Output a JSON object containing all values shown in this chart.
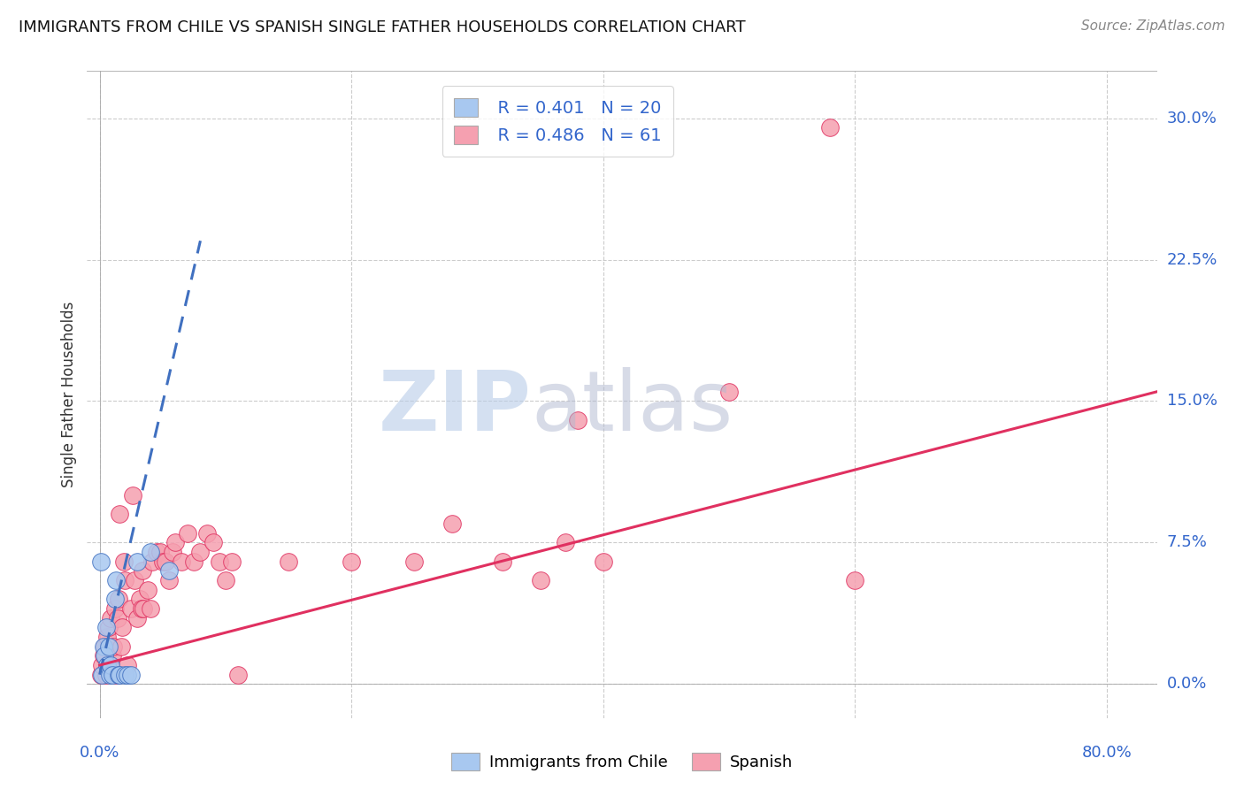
{
  "title": "IMMIGRANTS FROM CHILE VS SPANISH SINGLE FATHER HOUSEHOLDS CORRELATION CHART",
  "source": "Source: ZipAtlas.com",
  "ylabel": "Single Father Households",
  "yticks": [
    "0.0%",
    "7.5%",
    "15.0%",
    "22.5%",
    "30.0%"
  ],
  "ytick_vals": [
    0.0,
    0.075,
    0.15,
    0.225,
    0.3
  ],
  "xtick_vals": [
    0.0,
    0.2,
    0.4,
    0.6,
    0.8
  ],
  "xlim": [
    -0.01,
    0.84
  ],
  "ylim": [
    -0.018,
    0.325
  ],
  "legend_blue_R": "R = 0.401",
  "legend_blue_N": "N = 20",
  "legend_pink_R": "R = 0.486",
  "legend_pink_N": "N = 61",
  "blue_color": "#a8c8f0",
  "pink_color": "#f5a0b0",
  "blue_line_color": "#4070c0",
  "pink_line_color": "#e03060",
  "grid_color": "#cccccc",
  "title_color": "#111111",
  "label_color": "#3366cc",
  "blue_scatter": [
    [
      0.001,
      0.065
    ],
    [
      0.002,
      0.005
    ],
    [
      0.003,
      0.02
    ],
    [
      0.004,
      0.015
    ],
    [
      0.005,
      0.03
    ],
    [
      0.006,
      0.01
    ],
    [
      0.007,
      0.02
    ],
    [
      0.008,
      0.005
    ],
    [
      0.009,
      0.01
    ],
    [
      0.01,
      0.005
    ],
    [
      0.012,
      0.045
    ],
    [
      0.013,
      0.055
    ],
    [
      0.015,
      0.005
    ],
    [
      0.016,
      0.005
    ],
    [
      0.02,
      0.005
    ],
    [
      0.022,
      0.005
    ],
    [
      0.025,
      0.005
    ],
    [
      0.03,
      0.065
    ],
    [
      0.04,
      0.07
    ],
    [
      0.055,
      0.06
    ]
  ],
  "pink_scatter": [
    [
      0.001,
      0.005
    ],
    [
      0.002,
      0.01
    ],
    [
      0.003,
      0.015
    ],
    [
      0.004,
      0.02
    ],
    [
      0.005,
      0.005
    ],
    [
      0.006,
      0.025
    ],
    [
      0.007,
      0.03
    ],
    [
      0.008,
      0.01
    ],
    [
      0.009,
      0.035
    ],
    [
      0.01,
      0.015
    ],
    [
      0.011,
      0.02
    ],
    [
      0.012,
      0.04
    ],
    [
      0.013,
      0.005
    ],
    [
      0.014,
      0.035
    ],
    [
      0.015,
      0.045
    ],
    [
      0.016,
      0.09
    ],
    [
      0.017,
      0.02
    ],
    [
      0.018,
      0.03
    ],
    [
      0.019,
      0.065
    ],
    [
      0.02,
      0.055
    ],
    [
      0.022,
      0.01
    ],
    [
      0.025,
      0.04
    ],
    [
      0.026,
      0.1
    ],
    [
      0.028,
      0.055
    ],
    [
      0.03,
      0.035
    ],
    [
      0.032,
      0.045
    ],
    [
      0.033,
      0.04
    ],
    [
      0.034,
      0.06
    ],
    [
      0.035,
      0.04
    ],
    [
      0.038,
      0.05
    ],
    [
      0.04,
      0.04
    ],
    [
      0.042,
      0.065
    ],
    [
      0.045,
      0.07
    ],
    [
      0.048,
      0.07
    ],
    [
      0.05,
      0.065
    ],
    [
      0.052,
      0.065
    ],
    [
      0.055,
      0.055
    ],
    [
      0.058,
      0.07
    ],
    [
      0.06,
      0.075
    ],
    [
      0.065,
      0.065
    ],
    [
      0.07,
      0.08
    ],
    [
      0.075,
      0.065
    ],
    [
      0.08,
      0.07
    ],
    [
      0.085,
      0.08
    ],
    [
      0.09,
      0.075
    ],
    [
      0.095,
      0.065
    ],
    [
      0.1,
      0.055
    ],
    [
      0.105,
      0.065
    ],
    [
      0.11,
      0.005
    ],
    [
      0.15,
      0.065
    ],
    [
      0.2,
      0.065
    ],
    [
      0.25,
      0.065
    ],
    [
      0.28,
      0.085
    ],
    [
      0.32,
      0.065
    ],
    [
      0.35,
      0.055
    ],
    [
      0.37,
      0.075
    ],
    [
      0.38,
      0.14
    ],
    [
      0.4,
      0.065
    ],
    [
      0.5,
      0.155
    ],
    [
      0.6,
      0.055
    ],
    [
      0.58,
      0.295
    ]
  ],
  "blue_line": [
    [
      0.0,
      0.005
    ],
    [
      0.08,
      0.235
    ]
  ],
  "pink_line": [
    [
      0.0,
      0.01
    ],
    [
      0.84,
      0.155
    ]
  ]
}
